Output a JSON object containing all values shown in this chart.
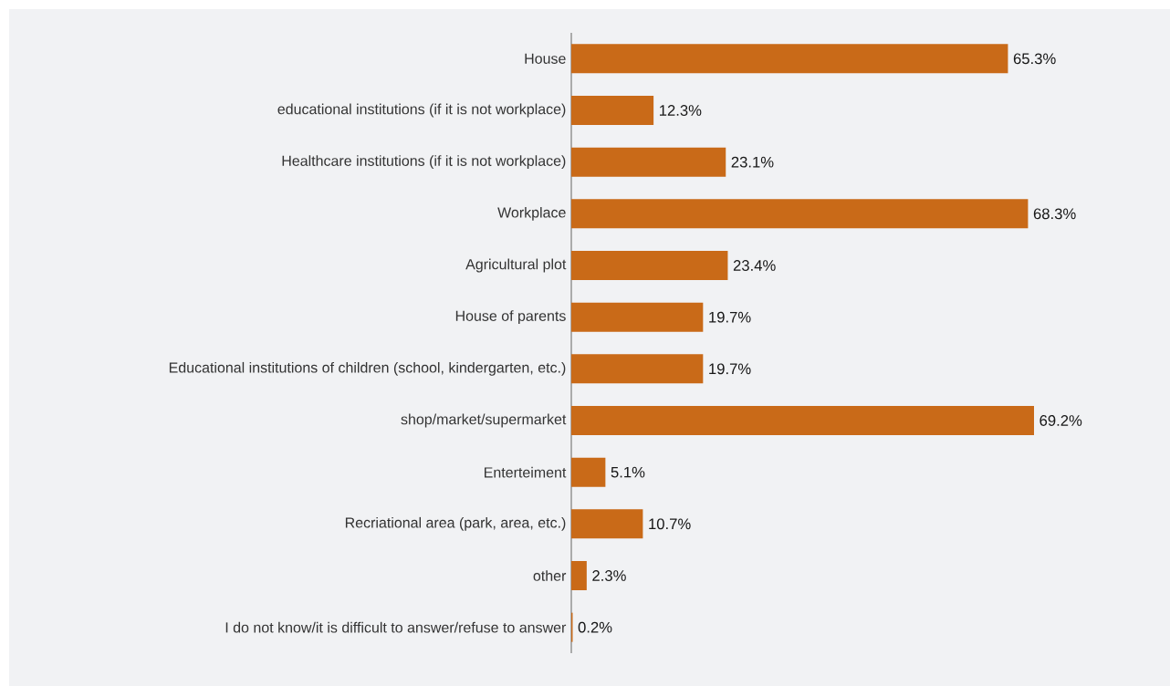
{
  "chart_data": {
    "type": "bar",
    "orientation": "horizontal",
    "categories": [
      "House",
      "educational institutions (if it is not workplace)",
      "Healthcare institutions (if it is not workplace)",
      "Workplace",
      "Agricultural plot",
      "House of parents",
      "Educational institutions of children (school, kindergarten, etc.)",
      "shop/market/supermarket",
      "Enterteiment",
      "Recriational area (park, area, etc.)",
      "other",
      "I do not know/it is difficult to answer/refuse to answer"
    ],
    "values": [
      65.3,
      12.3,
      23.1,
      68.3,
      23.4,
      19.7,
      19.7,
      69.2,
      5.1,
      10.7,
      2.3,
      0.2
    ],
    "value_labels": [
      "65.3%",
      "12.3%",
      "23.1%",
      "68.3%",
      "23.4%",
      "19.7%",
      "19.7%",
      "69.2%",
      "5.1%",
      "10.7%",
      "2.3%",
      "0.2%"
    ],
    "color": "#c96a18"
  }
}
